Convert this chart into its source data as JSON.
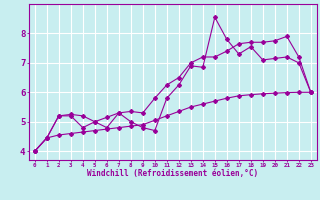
{
  "xlabel": "Windchill (Refroidissement éolien,°C)",
  "bg_color": "#c8eef0",
  "line_color": "#990099",
  "grid_color": "#ffffff",
  "xlim": [
    -0.5,
    23.5
  ],
  "ylim": [
    3.7,
    9.0
  ],
  "yticks": [
    4,
    5,
    6,
    7,
    8
  ],
  "xticks": [
    0,
    1,
    2,
    3,
    4,
    5,
    6,
    7,
    8,
    9,
    10,
    11,
    12,
    13,
    14,
    15,
    16,
    17,
    18,
    19,
    20,
    21,
    22,
    23
  ],
  "line1_x": [
    0,
    1,
    2,
    3,
    4,
    5,
    6,
    7,
    8,
    9,
    10,
    11,
    12,
    13,
    14,
    15,
    16,
    17,
    18,
    19,
    20,
    21,
    22,
    23
  ],
  "line1_y": [
    4.0,
    4.45,
    5.2,
    5.2,
    4.8,
    5.0,
    4.8,
    5.3,
    5.0,
    4.8,
    4.7,
    5.8,
    6.25,
    6.9,
    6.85,
    8.55,
    7.8,
    7.3,
    7.55,
    7.1,
    7.15,
    7.2,
    7.0,
    6.0
  ],
  "line2_x": [
    0,
    1,
    2,
    3,
    4,
    5,
    6,
    7,
    8,
    9,
    10,
    11,
    12,
    13,
    14,
    15,
    16,
    17,
    18,
    19,
    20,
    21,
    22,
    23
  ],
  "line2_y": [
    4.0,
    4.45,
    5.2,
    5.25,
    5.2,
    5.0,
    5.15,
    5.3,
    5.35,
    5.3,
    5.8,
    6.25,
    6.5,
    7.0,
    7.2,
    7.2,
    7.4,
    7.65,
    7.7,
    7.7,
    7.75,
    7.9,
    7.2,
    6.0
  ],
  "line3_x": [
    0,
    1,
    2,
    3,
    4,
    5,
    6,
    7,
    8,
    9,
    10,
    11,
    12,
    13,
    14,
    15,
    16,
    17,
    18,
    19,
    20,
    21,
    22,
    23
  ],
  "line3_y": [
    4.0,
    4.45,
    4.55,
    4.6,
    4.65,
    4.7,
    4.75,
    4.8,
    4.85,
    4.9,
    5.05,
    5.2,
    5.35,
    5.5,
    5.6,
    5.7,
    5.8,
    5.88,
    5.92,
    5.95,
    5.97,
    5.99,
    6.0,
    6.0
  ]
}
